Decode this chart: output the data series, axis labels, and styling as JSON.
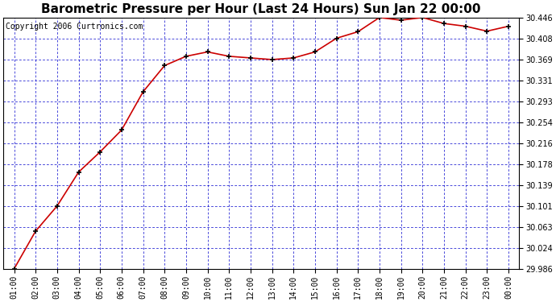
{
  "title": "Barometric Pressure per Hour (Last 24 Hours) Sun Jan 22 00:00",
  "copyright": "Copyright 2006 Curtronics.com",
  "x_labels": [
    "01:00",
    "02:00",
    "03:00",
    "04:00",
    "05:00",
    "06:00",
    "07:00",
    "08:00",
    "09:00",
    "10:00",
    "11:00",
    "12:00",
    "13:00",
    "14:00",
    "15:00",
    "16:00",
    "17:00",
    "18:00",
    "19:00",
    "20:00",
    "21:00",
    "22:00",
    "23:00",
    "00:00"
  ],
  "y_values": [
    29.986,
    30.055,
    30.101,
    30.163,
    30.2,
    30.24,
    30.31,
    30.358,
    30.375,
    30.383,
    30.375,
    30.372,
    30.369,
    30.372,
    30.383,
    30.408,
    30.42,
    30.446,
    30.441,
    30.446,
    30.435,
    30.43,
    30.421,
    30.43
  ],
  "y_ticks": [
    29.986,
    30.024,
    30.063,
    30.101,
    30.139,
    30.178,
    30.216,
    30.254,
    30.293,
    30.331,
    30.369,
    30.408,
    30.446
  ],
  "ylim_min": 29.986,
  "ylim_max": 30.446,
  "line_color": "#cc0000",
  "marker_color": "#000000",
  "bg_color": "#ffffff",
  "plot_bg_color": "#ffffff",
  "grid_color": "#0000cc",
  "title_fontsize": 11,
  "copyright_fontsize": 7,
  "tick_fontsize": 7,
  "fig_width": 6.9,
  "fig_height": 3.75
}
